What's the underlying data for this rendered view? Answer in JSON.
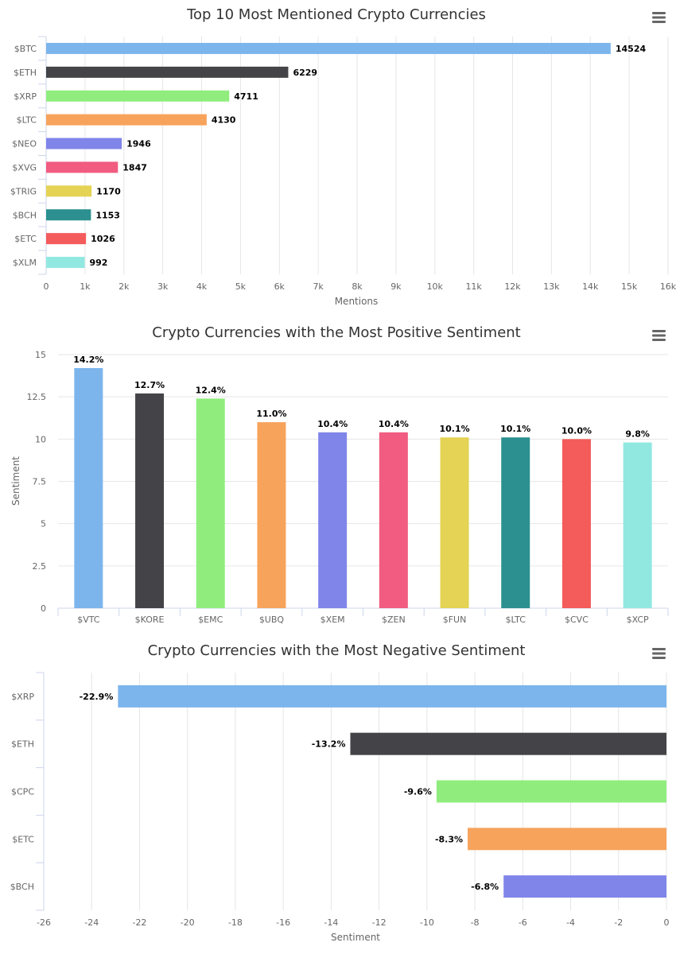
{
  "chart_data": [
    {
      "type": "bar",
      "orientation": "horizontal",
      "title": "Top 10 Most Mentioned Crypto Currencies",
      "xlabel": "Mentions",
      "ylabel": "",
      "categories": [
        "$BTC",
        "$ETH",
        "$XRP",
        "$LTC",
        "$NEO",
        "$XVG",
        "$TRIG",
        "$BCH",
        "$ETC",
        "$XLM"
      ],
      "values": [
        14524,
        6229,
        4711,
        4130,
        1946,
        1847,
        1170,
        1153,
        1026,
        992
      ],
      "value_labels": [
        "14524",
        "6229",
        "4711",
        "4130",
        "1946",
        "1847",
        "1170",
        "1153",
        "1026",
        "992"
      ],
      "axis_min": 0,
      "axis_max": 16000,
      "ticks": [
        0,
        1000,
        2000,
        3000,
        4000,
        5000,
        6000,
        7000,
        8000,
        9000,
        10000,
        11000,
        12000,
        13000,
        14000,
        15000,
        16000
      ],
      "tick_labels": [
        "0",
        "1k",
        "2k",
        "3k",
        "4k",
        "5k",
        "6k",
        "7k",
        "8k",
        "9k",
        "10k",
        "11k",
        "12k",
        "13k",
        "14k",
        "15k",
        "16k"
      ],
      "colors": [
        "#7cb5ec",
        "#434348",
        "#90ed7d",
        "#f7a35c",
        "#8085e9",
        "#f15c80",
        "#e4d354",
        "#2b908f",
        "#f45b5b",
        "#91e8e1"
      ],
      "grid": true,
      "legend": "none"
    },
    {
      "type": "bar",
      "orientation": "vertical",
      "title": "Crypto Currencies with the Most Positive Sentiment",
      "xlabel": "",
      "ylabel": "Sentiment",
      "categories": [
        "$VTC",
        "$KORE",
        "$EMC",
        "$UBQ",
        "$XEM",
        "$ZEN",
        "$FUN",
        "$LTC",
        "$CVC",
        "$XCP"
      ],
      "values": [
        14.2,
        12.7,
        12.4,
        11.0,
        10.4,
        10.4,
        10.1,
        10.1,
        10.0,
        9.8
      ],
      "value_labels": [
        "14.2%",
        "12.7%",
        "12.4%",
        "11.0%",
        "10.4%",
        "10.4%",
        "10.1%",
        "10.1%",
        "10.0%",
        "9.8%"
      ],
      "axis_min": 0,
      "axis_max": 15,
      "ticks": [
        0,
        2.5,
        5,
        7.5,
        10,
        12.5,
        15
      ],
      "tick_labels": [
        "0",
        "2.5",
        "5",
        "7.5",
        "10",
        "12.5",
        "15"
      ],
      "colors": [
        "#7cb5ec",
        "#434348",
        "#90ed7d",
        "#f7a35c",
        "#8085e9",
        "#f15c80",
        "#e4d354",
        "#2b908f",
        "#f45b5b",
        "#91e8e1"
      ],
      "grid": true,
      "legend": "none"
    },
    {
      "type": "bar",
      "orientation": "horizontal",
      "title": "Crypto Currencies with the Most Negative Sentiment",
      "xlabel": "Sentiment",
      "ylabel": "",
      "categories": [
        "$XRP",
        "$ETH",
        "$CPC",
        "$ETC",
        "$BCH"
      ],
      "values": [
        -22.9,
        -13.2,
        -9.6,
        -8.3,
        -6.8
      ],
      "value_labels": [
        "-22.9%",
        "-13.2%",
        "-9.6%",
        "-8.3%",
        "-6.8%"
      ],
      "axis_min": -26,
      "axis_max": 0,
      "ticks": [
        -26,
        -24,
        -22,
        -20,
        -18,
        -16,
        -14,
        -12,
        -10,
        -8,
        -6,
        -4,
        -2,
        0
      ],
      "tick_labels": [
        "-26",
        "-24",
        "-22",
        "-20",
        "-18",
        "-16",
        "-14",
        "-12",
        "-10",
        "-8",
        "-6",
        "-4",
        "-2",
        "0"
      ],
      "colors": [
        "#7cb5ec",
        "#434348",
        "#90ed7d",
        "#f7a35c",
        "#8085e9"
      ],
      "grid": true,
      "legend": "none"
    }
  ],
  "icons": {
    "menu": "hamburger-menu-icon"
  },
  "style": {
    "grid_color": "#e6e6e6",
    "axis_color": "#ccd6eb",
    "menu_color": "#666666"
  }
}
